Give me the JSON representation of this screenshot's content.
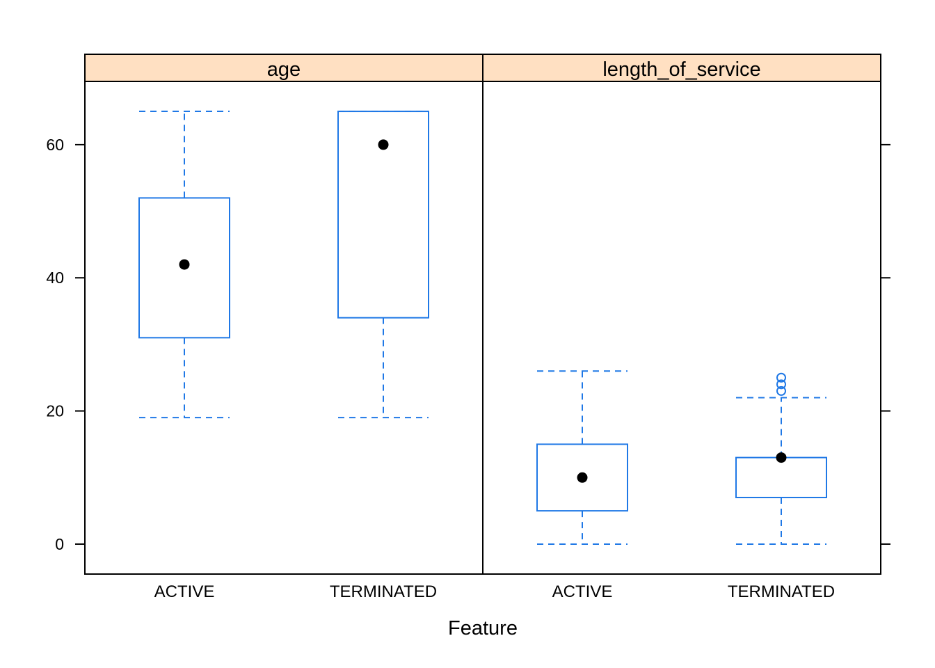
{
  "chart_data": {
    "type": "boxplot",
    "xlabel": "Feature",
    "ylabel": "",
    "ylim": [
      -4.5,
      69.5
    ],
    "yticks": [
      0,
      20,
      40,
      60
    ],
    "grid": false,
    "legend": "none",
    "colors": {
      "box": "#1f78e6",
      "median": "#000000",
      "strip": "#ffe0c2",
      "frame": "#000000"
    },
    "panels": [
      {
        "title": "age",
        "groups": [
          {
            "category": "ACTIVE",
            "whisker_low": 19,
            "q1": 31,
            "median": 42,
            "q3": 52,
            "whisker_high": 65,
            "outliers": []
          },
          {
            "category": "TERMINATED",
            "whisker_low": 19,
            "q1": 34,
            "median": 60,
            "q3": 65,
            "whisker_high": 65,
            "outliers": []
          }
        ]
      },
      {
        "title": "length_of_service",
        "groups": [
          {
            "category": "ACTIVE",
            "whisker_low": 0,
            "q1": 5,
            "median": 10,
            "q3": 15,
            "whisker_high": 26,
            "outliers": []
          },
          {
            "category": "TERMINATED",
            "whisker_low": 0,
            "q1": 7,
            "median": 13,
            "q3": 13,
            "whisker_high": 22,
            "outliers": [
              23,
              24,
              25
            ]
          }
        ]
      }
    ]
  }
}
